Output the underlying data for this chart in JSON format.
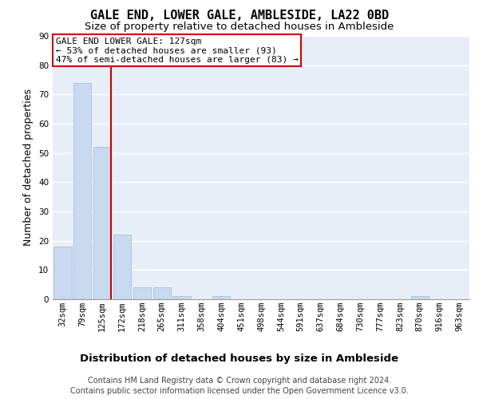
{
  "title": "GALE END, LOWER GALE, AMBLESIDE, LA22 0BD",
  "subtitle": "Size of property relative to detached houses in Ambleside",
  "xlabel_bottom": "Distribution of detached houses by size in Ambleside",
  "ylabel": "Number of detached properties",
  "categories": [
    "32sqm",
    "79sqm",
    "125sqm",
    "172sqm",
    "218sqm",
    "265sqm",
    "311sqm",
    "358sqm",
    "404sqm",
    "451sqm",
    "498sqm",
    "544sqm",
    "591sqm",
    "637sqm",
    "684sqm",
    "730sqm",
    "777sqm",
    "823sqm",
    "870sqm",
    "916sqm",
    "963sqm"
  ],
  "values": [
    18,
    74,
    52,
    22,
    4,
    4,
    1,
    0,
    1,
    0,
    0,
    0,
    0,
    0,
    0,
    0,
    0,
    0,
    1,
    0,
    0
  ],
  "bar_color": "#c9d9f0",
  "bar_edge_color": "#a0b8d8",
  "highlight_line_color": "#cc0000",
  "annotation_text": "GALE END LOWER GALE: 127sqm\n← 53% of detached houses are smaller (93)\n47% of semi-detached houses are larger (83) →",
  "box_color": "#ffffff",
  "box_edge_color": "#cc0000",
  "ylim": [
    0,
    90
  ],
  "yticks": [
    0,
    10,
    20,
    30,
    40,
    50,
    60,
    70,
    80,
    90
  ],
  "background_color": "#e8eef8",
  "footer_line1": "Contains HM Land Registry data © Crown copyright and database right 2024.",
  "footer_line2": "Contains public sector information licensed under the Open Government Licence v3.0.",
  "title_fontsize": 11,
  "subtitle_fontsize": 9.5,
  "tick_fontsize": 7.5,
  "ylabel_fontsize": 9,
  "annotation_fontsize": 8,
  "footer_fontsize": 7,
  "xlabel_fontsize": 9.5
}
